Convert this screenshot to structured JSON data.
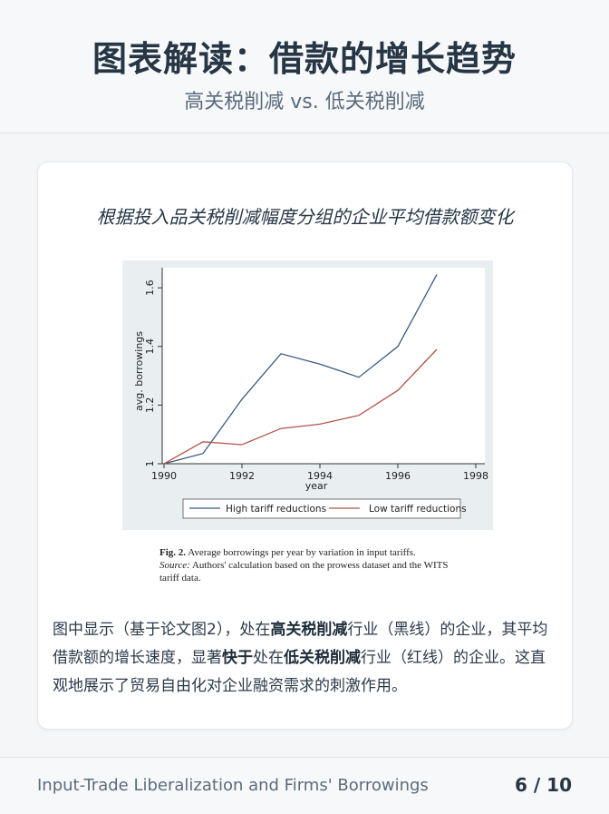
{
  "header": {
    "title": "图表解读：借款的增长趋势",
    "subtitle": "高关税削减 vs. 低关税削减"
  },
  "card": {
    "title": "根据投入品关税削减幅度分组的企业平均借款额变化",
    "caption": {
      "fig_label": "Fig. 2.",
      "fig_text": "Average borrowings per year by variation in input tariffs.",
      "source_label": "Source:",
      "source_text": "Authors' calculation based on the prowess dataset and the WITS tariff data."
    },
    "body": {
      "p1": "图中显示（基于论文图2），处在",
      "h1": "高关税削减",
      "p2": "行业（黑线）的企业，其平均借款额的增长速度，显著",
      "h2": "快于",
      "p3": "处在",
      "h3": "低关税削减",
      "p4": "行业（红线）的企业。这直观地展示了贸易自由化对企业融资需求的刺激作用。"
    }
  },
  "footer": {
    "left": "Input-Trade Liberalization and Firms' Borrowings",
    "page": "6 / 10"
  },
  "chart_data": {
    "type": "line",
    "xlabel": "year",
    "ylabel": "avg. borrowings",
    "xlim": [
      1990,
      1998
    ],
    "ylim": [
      1,
      1.65
    ],
    "xticks": [
      1990,
      1992,
      1994,
      1996,
      1998
    ],
    "yticks": [
      1,
      1.2,
      1.4,
      1.6
    ],
    "legend_position": "bottom",
    "series": [
      {
        "name": "High tariff reductions",
        "color": "#3a5a80",
        "x": [
          1990,
          1991,
          1992,
          1993,
          1994,
          1995,
          1996,
          1997
        ],
        "y": [
          1.0,
          1.035,
          1.22,
          1.375,
          1.34,
          1.295,
          1.4,
          1.645
        ]
      },
      {
        "name": "Low tariff reductions",
        "color": "#b5534a",
        "x": [
          1990,
          1991,
          1992,
          1993,
          1994,
          1995,
          1996,
          1997
        ],
        "y": [
          1.0,
          1.075,
          1.065,
          1.12,
          1.135,
          1.165,
          1.25,
          1.39
        ]
      }
    ]
  }
}
